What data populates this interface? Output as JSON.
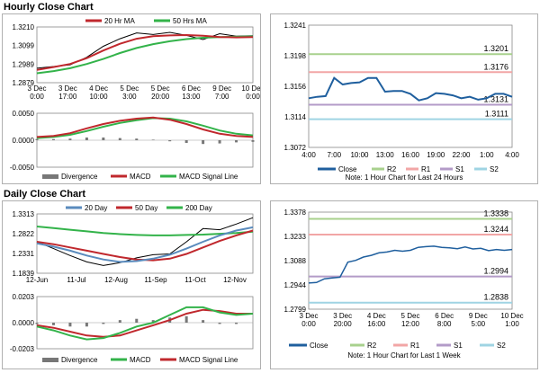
{
  "sections": {
    "hourly_title": "Hourly Close Chart",
    "daily_title": "Daily Close Chart"
  },
  "colors": {
    "ma_short": "#c0282d",
    "ma_long": "#33b34a",
    "ma_mid": "#5a8bbd",
    "price": "#000000",
    "close_blue": "#1f5f9e",
    "divergence": "#777777",
    "signal": "#33b34a",
    "r2": "#a8d18d",
    "r1": "#f2a6a6",
    "s1": "#b39bc8",
    "s2": "#9fd4e3"
  },
  "chart_data": [
    {
      "id": "hourly_price_ma",
      "type": "line",
      "x_labels": [
        "3 Dec\n0:00",
        "3 Dec\n17:00",
        "4 Dec\n10:00",
        "5 Dec\n3:00",
        "5 Dec\n20:00",
        "6 Dec\n13:00",
        "9 Dec\n7:00",
        "10 Dec\n0:00"
      ],
      "y_ticks": [
        "1.3210",
        "1.3099",
        "1.2989",
        "1.2879"
      ],
      "ylim": [
        1.2879,
        1.321
      ],
      "legend": [
        "20 Hr MA",
        "50 Hrs MA"
      ],
      "series": [
        {
          "name": "20 Hr MA",
          "values": [
            1.2955,
            1.2972,
            1.299,
            1.3025,
            1.307,
            1.311,
            1.314,
            1.3155,
            1.316,
            1.3162,
            1.3158,
            1.315,
            1.3148,
            1.315
          ]
        },
        {
          "name": "50 Hrs MA",
          "values": [
            1.2935,
            1.2948,
            1.2965,
            1.299,
            1.302,
            1.3055,
            1.3085,
            1.3108,
            1.3125,
            1.3138,
            1.3146,
            1.315,
            1.3152,
            1.3154
          ]
        },
        {
          "name": "Price",
          "values": [
            1.2965,
            1.2975,
            1.2985,
            1.303,
            1.3095,
            1.314,
            1.3175,
            1.3165,
            1.3178,
            1.316,
            1.3135,
            1.317,
            1.3155,
            1.3158
          ]
        }
      ]
    },
    {
      "id": "hourly_macd",
      "type": "line",
      "y_ticks": [
        "0.0050",
        "0.0000",
        "-0.0050"
      ],
      "ylim": [
        -0.005,
        0.005
      ],
      "legend": [
        "Divergence",
        "MACD",
        "MACD Signal Line"
      ],
      "series": [
        {
          "name": "MACD",
          "values": [
            0.0006,
            0.0008,
            0.0013,
            0.0022,
            0.003,
            0.0036,
            0.004,
            0.0042,
            0.0038,
            0.003,
            0.002,
            0.0012,
            0.0008,
            0.0006
          ]
        },
        {
          "name": "MACD Signal Line",
          "values": [
            0.0004,
            0.0006,
            0.001,
            0.0017,
            0.0025,
            0.0032,
            0.0037,
            0.0041,
            0.004,
            0.0035,
            0.0027,
            0.0018,
            0.0012,
            0.0009
          ]
        },
        {
          "name": "Divergence",
          "values": [
            0.0002,
            0.0002,
            0.0003,
            0.0005,
            0.0005,
            0.0004,
            0.0003,
            0.0001,
            -0.0002,
            -0.0005,
            -0.0007,
            -0.0006,
            -0.0004,
            -0.0003
          ]
        }
      ]
    },
    {
      "id": "hourly_last24",
      "type": "line",
      "x_labels": [
        "4:00",
        "7:00",
        "10:00",
        "13:00",
        "16:00",
        "19:00",
        "22:00",
        "1:00",
        "4:00"
      ],
      "y_ticks": [
        "1.3241",
        "1.3198",
        "1.3156",
        "1.3114",
        "1.3072"
      ],
      "ylim": [
        1.3072,
        1.3241
      ],
      "levels": [
        {
          "name": "R2",
          "value": 1.3201,
          "label": "1.3201"
        },
        {
          "name": "R1",
          "value": 1.3176,
          "label": "1.3176"
        },
        {
          "name": "S1",
          "value": 1.3131,
          "label": "1.3131"
        },
        {
          "name": "S2",
          "value": 1.3111,
          "label": "1.3111"
        }
      ],
      "legend": [
        "Close",
        "R2",
        "R1",
        "S1",
        "S2"
      ],
      "note": "Note: 1 Hour Chart for Last 24 Hours",
      "series": [
        {
          "name": "Close",
          "values": [
            1.314,
            1.3142,
            1.3143,
            1.3168,
            1.3159,
            1.3161,
            1.3162,
            1.3168,
            1.3168,
            1.3149,
            1.315,
            1.315,
            1.3146,
            1.3137,
            1.314,
            1.3147,
            1.3146,
            1.3144,
            1.314,
            1.3142,
            1.3138,
            1.314,
            1.3146,
            1.3146,
            1.3142
          ]
        }
      ]
    },
    {
      "id": "daily_price_ma",
      "type": "line",
      "x_labels": [
        "12-Jun",
        "11-Jul",
        "12-Aug",
        "11-Sep",
        "11-Oct",
        "12-Nov"
      ],
      "y_ticks": [
        "1.3313",
        "1.2822",
        "1.2331",
        "1.1839"
      ],
      "ylim": [
        1.1839,
        1.3313
      ],
      "legend": [
        "20 Day",
        "50 Day",
        "200 Day"
      ],
      "series": [
        {
          "name": "20 Day",
          "values": [
            1.258,
            1.25,
            1.24,
            1.228,
            1.218,
            1.212,
            1.214,
            1.22,
            1.23,
            1.245,
            1.262,
            1.278,
            1.29,
            1.298
          ]
        },
        {
          "name": "50 Day",
          "values": [
            1.262,
            1.256,
            1.248,
            1.24,
            1.232,
            1.224,
            1.218,
            1.216,
            1.22,
            1.232,
            1.248,
            1.264,
            1.278,
            1.29
          ]
        },
        {
          "name": "200 Day",
          "values": [
            1.3,
            1.296,
            1.292,
            1.288,
            1.284,
            1.281,
            1.279,
            1.278,
            1.278,
            1.279,
            1.28,
            1.282,
            1.284,
            1.287
          ]
        },
        {
          "name": "Price",
          "values": [
            1.262,
            1.245,
            1.228,
            1.212,
            1.203,
            1.21,
            1.222,
            1.23,
            1.232,
            1.262,
            1.295,
            1.292,
            1.306,
            1.322
          ]
        }
      ]
    },
    {
      "id": "daily_macd",
      "type": "line",
      "y_ticks": [
        "0.0203",
        "0.0000",
        "-0.0203"
      ],
      "ylim": [
        -0.0203,
        0.0203
      ],
      "legend": [
        "Divergence",
        "MACD",
        "MACD Signal Line"
      ],
      "series": [
        {
          "name": "MACD",
          "values": [
            -0.003,
            -0.006,
            -0.01,
            -0.013,
            -0.012,
            -0.008,
            -0.003,
            0.0,
            0.006,
            0.012,
            0.012,
            0.008,
            0.006,
            0.007
          ]
        },
        {
          "name": "MACD Signal Line",
          "values": [
            -0.002,
            -0.004,
            -0.007,
            -0.01,
            -0.011,
            -0.01,
            -0.006,
            -0.002,
            0.002,
            0.007,
            0.01,
            0.009,
            0.007,
            0.007
          ]
        },
        {
          "name": "Divergence",
          "values": [
            -0.001,
            -0.002,
            -0.003,
            -0.003,
            -0.001,
            0.002,
            0.003,
            0.002,
            0.004,
            0.005,
            0.002,
            -0.001,
            -0.001,
            0.0
          ]
        }
      ]
    },
    {
      "id": "daily_lastweek",
      "type": "line",
      "x_labels": [
        "3 Dec\n0:00",
        "3 Dec\n20:00",
        "4 Dec\n16:00",
        "5 Dec\n12:00",
        "6 Dec\n8:00",
        "9 Dec\n5:00",
        "10 Dec\n1:00"
      ],
      "y_ticks": [
        "1.3378",
        "1.3233",
        "1.3088",
        "1.2944",
        "1.2799"
      ],
      "ylim": [
        1.2799,
        1.3378
      ],
      "levels": [
        {
          "name": "R2",
          "value": 1.3338,
          "label": "1.3338"
        },
        {
          "name": "R1",
          "value": 1.3244,
          "label": "1.3244"
        },
        {
          "name": "S1",
          "value": 1.2994,
          "label": "1.2994"
        },
        {
          "name": "S2",
          "value": 1.2838,
          "label": "1.2838"
        }
      ],
      "legend": [
        "Close",
        "R2",
        "R1",
        "S1",
        "S2"
      ],
      "note": "Note: 1 Hour Chart for Last 1 Week",
      "series": [
        {
          "name": "Close",
          "values": [
            1.2955,
            1.2958,
            1.298,
            1.2985,
            1.299,
            1.308,
            1.309,
            1.311,
            1.312,
            1.3135,
            1.314,
            1.315,
            1.3145,
            1.315,
            1.3168,
            1.3172,
            1.3175,
            1.3168,
            1.3165,
            1.316,
            1.317,
            1.3158,
            1.3162,
            1.3148,
            1.3155,
            1.315,
            1.3155
          ]
        }
      ]
    }
  ]
}
